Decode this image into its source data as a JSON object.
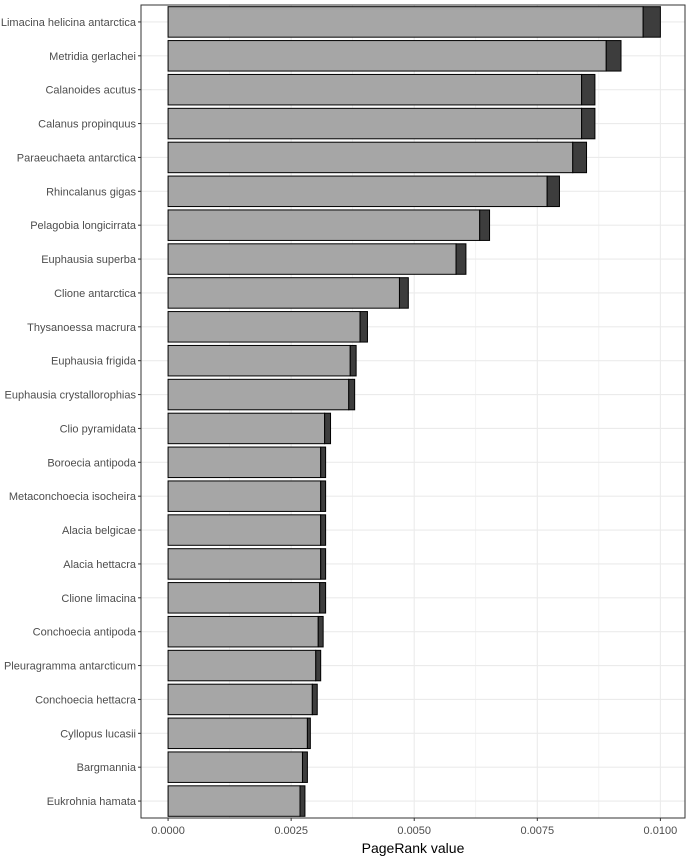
{
  "chart_data": {
    "type": "bar",
    "orientation": "horizontal",
    "stacked": true,
    "xlabel": "PageRank value",
    "ylabel": "",
    "xlim": [
      -0.00055,
      0.0105
    ],
    "x_ticks": [
      0,
      0.0025,
      0.005,
      0.0075,
      0.01
    ],
    "x_tick_labels": [
      "0.0000",
      "0.0025",
      "0.0050",
      "0.0075",
      "0.0100"
    ],
    "grid": true,
    "legend": "none",
    "colors": {
      "base": "#a6a6a6",
      "cap": "#3d3d3d",
      "outline": "#000000",
      "grid": "#ebebeb",
      "panel_border": "#333333"
    },
    "categories": [
      "Limacina helicina antarctica",
      "Metridia gerlachei",
      "Calanoides acutus",
      "Calanus propinquus",
      "Paraeuchaeta antarctica",
      "Rhincalanus gigas",
      "Pelagobia longicirrata",
      "Euphausia superba",
      "Clione antarctica",
      "Thysanoessa macrura",
      "Euphausia frigida",
      "Euphausia crystallorophias",
      "Clio pyramidata",
      "Boroecia antipoda",
      "Metaconchoecia isocheira",
      "Alacia belgicae",
      "Alacia hettacra",
      "Clione limacina",
      "Conchoecia antipoda",
      "Pleuragramma antarcticum",
      "Conchoecia hettacra",
      "Cyllopus lucasii",
      "Bargmannia",
      "Eukrohnia hamata"
    ],
    "series": [
      {
        "values": [
          0.00965,
          0.0089,
          0.0084,
          0.0084,
          0.00822,
          0.0077,
          0.00633,
          0.00585,
          0.0047,
          0.0039,
          0.0037,
          0.00367,
          0.00318,
          0.0031,
          0.0031,
          0.0031,
          0.0031,
          0.00308,
          0.00305,
          0.003,
          0.00293,
          0.00283,
          0.00273,
          0.00268
        ]
      },
      {
        "values": [
          0.00035,
          0.0003,
          0.00027,
          0.00027,
          0.00028,
          0.00025,
          0.0002,
          0.0002,
          0.00018,
          0.00015,
          0.00012,
          0.00012,
          0.00012,
          0.0001,
          0.0001,
          0.0001,
          0.0001,
          0.00012,
          0.0001,
          0.0001,
          0.0001,
          6e-05,
          0.0001,
          0.0001
        ]
      }
    ]
  }
}
